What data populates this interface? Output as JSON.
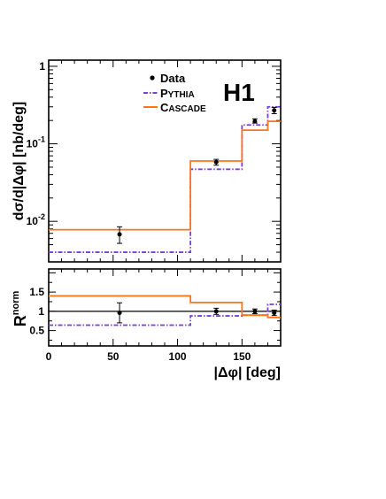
{
  "chart_data": [
    {
      "type": "line",
      "subtype": "step-histogram-with-points",
      "experiment_label": "H1",
      "ylabel": "dσ/d|Δφ| [nb/deg]",
      "yscale": "log",
      "ylim": [
        0.003,
        1.2
      ],
      "xlim": [
        0,
        180
      ],
      "yticks": [
        {
          "value": 0.01,
          "base": "10",
          "exp": "-2"
        },
        {
          "value": 0.1,
          "base": "10",
          "exp": "-1"
        },
        {
          "value": 1,
          "base": "1",
          "exp": ""
        }
      ],
      "legend": [
        {
          "key": "data",
          "label": "Data",
          "style": "marker"
        },
        {
          "key": "pythia",
          "label": "PYTHIA",
          "label_parts": [
            "P",
            "YTHIA"
          ],
          "style": "dash-dot",
          "color": "#7b3fd9"
        },
        {
          "key": "cascade",
          "label": "CASCADE",
          "label_parts": [
            "C",
            "ASCADE"
          ],
          "style": "solid",
          "color": "#ff7518"
        }
      ],
      "bin_edges": [
        0,
        110,
        150,
        170,
        180
      ],
      "series": [
        {
          "name": "Data",
          "x": [
            55,
            130,
            160,
            175
          ],
          "values": [
            0.0068,
            0.058,
            0.195,
            0.27
          ],
          "err_low": [
            0.0052,
            0.053,
            0.185,
            0.245
          ],
          "err_high": [
            0.0085,
            0.063,
            0.21,
            0.295
          ]
        },
        {
          "name": "PYTHIA",
          "values": [
            0.004,
            0.047,
            0.175,
            0.3
          ]
        },
        {
          "name": "CASCADE",
          "values": [
            0.0078,
            0.06,
            0.15,
            0.195
          ]
        }
      ]
    },
    {
      "type": "line",
      "subtype": "step-histogram-with-points",
      "ylabel": "R",
      "ylabel_sup": "norm",
      "xlabel": "|Δφ| [deg]",
      "xlim": [
        0,
        180
      ],
      "ylim": [
        0.1,
        2.1
      ],
      "xticks": [
        "0",
        "50",
        "100",
        "150"
      ],
      "xtick_values": [
        0,
        50,
        100,
        150
      ],
      "yticks": [
        "0.5",
        "1",
        "1.5"
      ],
      "ytick_values": [
        0.5,
        1,
        1.5
      ],
      "reference_line": 1,
      "bin_edges": [
        0,
        110,
        150,
        170,
        180
      ],
      "series": [
        {
          "name": "Data",
          "x": [
            55,
            130,
            160,
            175
          ],
          "values": [
            0.96,
            1.0,
            1.0,
            0.96
          ],
          "err_low": [
            0.7,
            0.92,
            0.94,
            0.89
          ],
          "err_high": [
            1.22,
            1.08,
            1.06,
            1.03
          ]
        },
        {
          "name": "PYTHIA",
          "values": [
            0.64,
            0.88,
            0.9,
            1.18
          ]
        },
        {
          "name": "CASCADE",
          "values": [
            1.4,
            1.23,
            0.9,
            0.84
          ]
        }
      ]
    }
  ]
}
